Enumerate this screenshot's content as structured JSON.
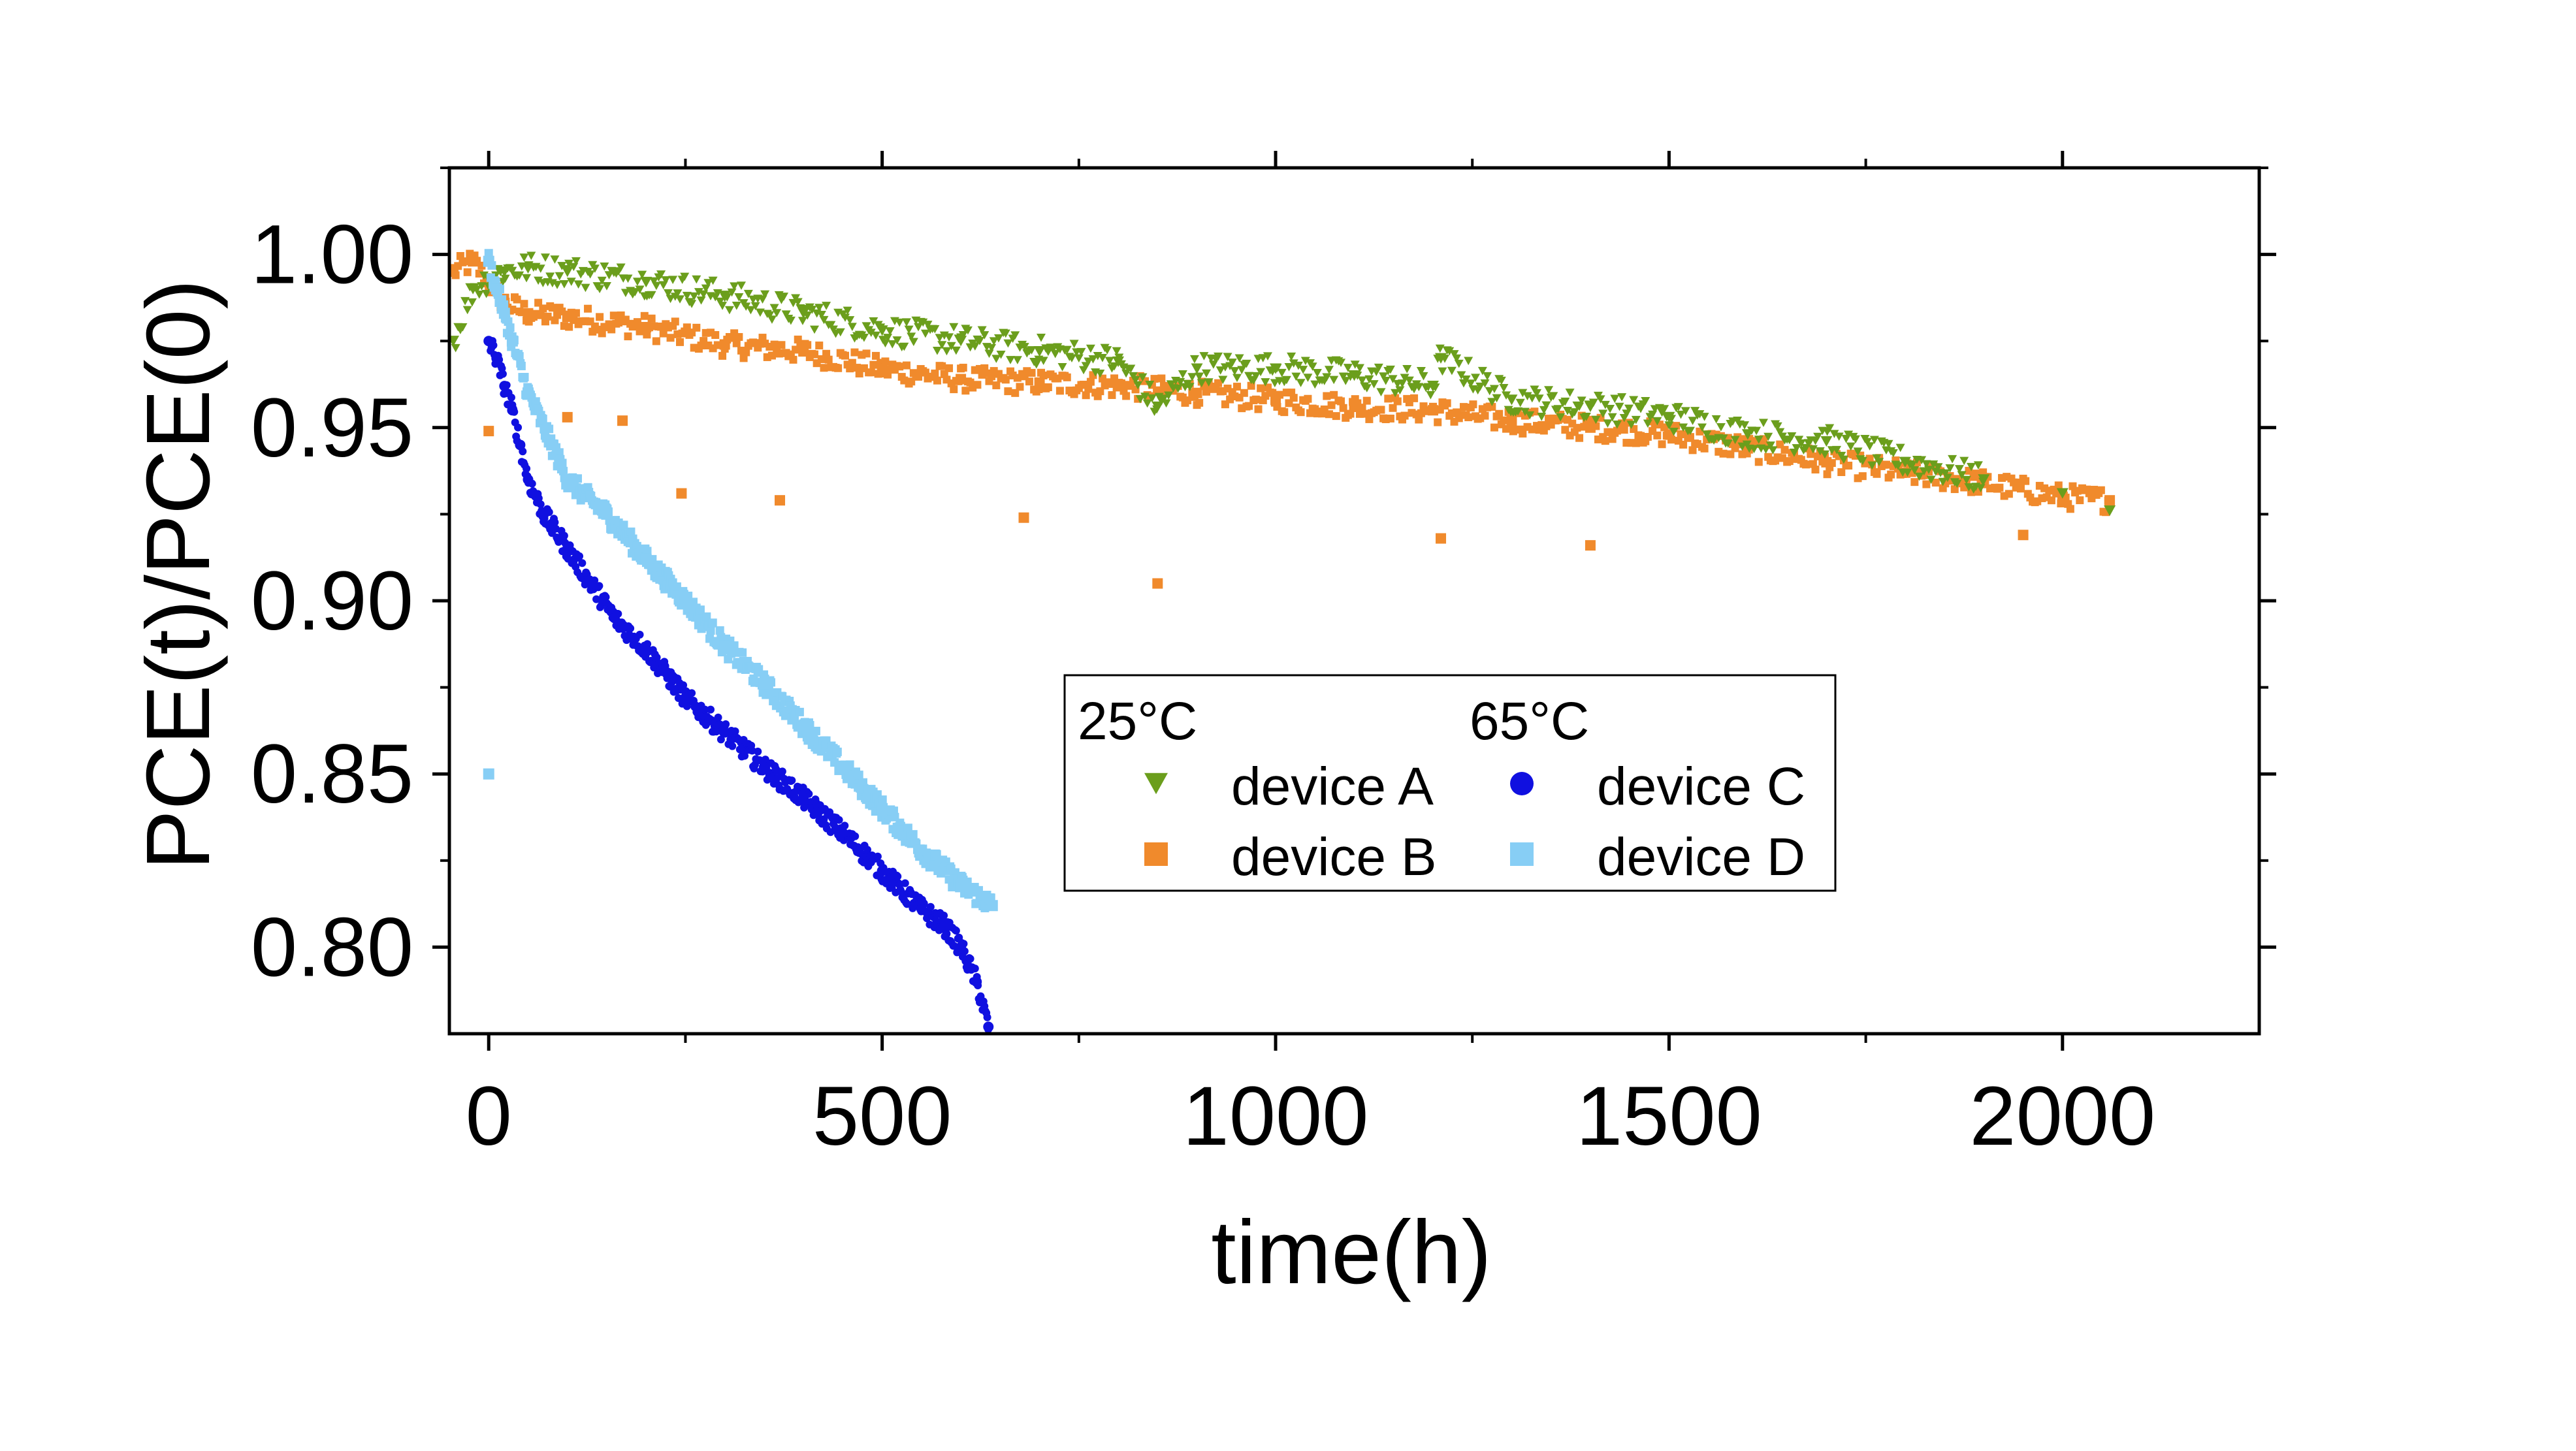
{
  "chart_data": {
    "type": "scatter",
    "xlabel": "time(h)",
    "ylabel": "PCE(t)/PCE(0)",
    "xlim": [
      -50,
      2250
    ],
    "ylim": [
      0.775,
      1.025
    ],
    "x_ticks": [
      "0",
      "500",
      "1000",
      "1500",
      "2000"
    ],
    "y_ticks": [
      "0.80",
      "0.85",
      "0.90",
      "0.95",
      "1.00"
    ],
    "grid": false,
    "legend": {
      "placement": "center-right",
      "groups": [
        {
          "title": "25°C",
          "entries": [
            "device A",
            "device B"
          ]
        },
        {
          "title": "65°C",
          "entries": [
            "device C",
            "device D"
          ]
        }
      ]
    },
    "series": [
      {
        "name": "device A",
        "group": "25°C",
        "marker": "triangle-down",
        "color": "#6b9e1c",
        "x": [
          -45,
          -20,
          0,
          20,
          50,
          100,
          200,
          300,
          400,
          500,
          600,
          700,
          800,
          850,
          900,
          1000,
          1100,
          1200,
          1210,
          1300,
          1400,
          1500,
          1600,
          1700,
          1800,
          1900,
          2000,
          2060
        ],
        "y": [
          0.975,
          0.99,
          0.993,
          0.995,
          0.996,
          0.995,
          0.992,
          0.988,
          0.983,
          0.978,
          0.975,
          0.972,
          0.969,
          0.956,
          0.967,
          0.967,
          0.965,
          0.962,
          0.97,
          0.958,
          0.956,
          0.953,
          0.948,
          0.946,
          0.94,
          0.935,
          0.931,
          0.926
        ]
      },
      {
        "name": "device B",
        "group": "25°C",
        "marker": "square",
        "color": "#f08a2c",
        "x": [
          -45,
          -20,
          0,
          20,
          50,
          100,
          200,
          300,
          400,
          500,
          600,
          700,
          800,
          900,
          1000,
          1100,
          1200,
          1300,
          1400,
          1500,
          1600,
          1700,
          1800,
          1900,
          2000,
          2060,
          0,
          100,
          170,
          245,
          370,
          680,
          850,
          1210,
          1400,
          1950
        ],
        "y": [
          0.995,
          0.998,
          0.992,
          0.986,
          0.983,
          0.982,
          0.979,
          0.974,
          0.972,
          0.967,
          0.964,
          0.963,
          0.962,
          0.96,
          0.958,
          0.956,
          0.955,
          0.952,
          0.95,
          0.948,
          0.944,
          0.94,
          0.937,
          0.934,
          0.93,
          0.929,
          0.949,
          0.953,
          0.952,
          0.931,
          0.929,
          0.924,
          0.905,
          0.918,
          0.916,
          0.919
        ]
      },
      {
        "name": "device C",
        "group": "65°C",
        "marker": "circle",
        "color": "#1010e0",
        "x": [
          0,
          10,
          20,
          30,
          40,
          50,
          70,
          100,
          130,
          160,
          200,
          250,
          300,
          350,
          400,
          450,
          500,
          550,
          580,
          600,
          620,
          635
        ],
        "y": [
          0.975,
          0.97,
          0.962,
          0.955,
          0.945,
          0.935,
          0.925,
          0.915,
          0.905,
          0.895,
          0.886,
          0.872,
          0.862,
          0.852,
          0.843,
          0.833,
          0.822,
          0.811,
          0.806,
          0.8,
          0.79,
          0.777
        ]
      },
      {
        "name": "device D",
        "group": "65°C",
        "marker": "square",
        "color": "#87cef5",
        "x": [
          0,
          10,
          20,
          30,
          50,
          80,
          100,
          150,
          200,
          250,
          300,
          350,
          400,
          450,
          500,
          550,
          600,
          640,
          0
        ],
        "y": [
          0.998,
          0.99,
          0.983,
          0.975,
          0.96,
          0.945,
          0.935,
          0.925,
          0.912,
          0.9,
          0.887,
          0.876,
          0.864,
          0.852,
          0.84,
          0.828,
          0.818,
          0.812,
          0.85
        ]
      }
    ]
  }
}
